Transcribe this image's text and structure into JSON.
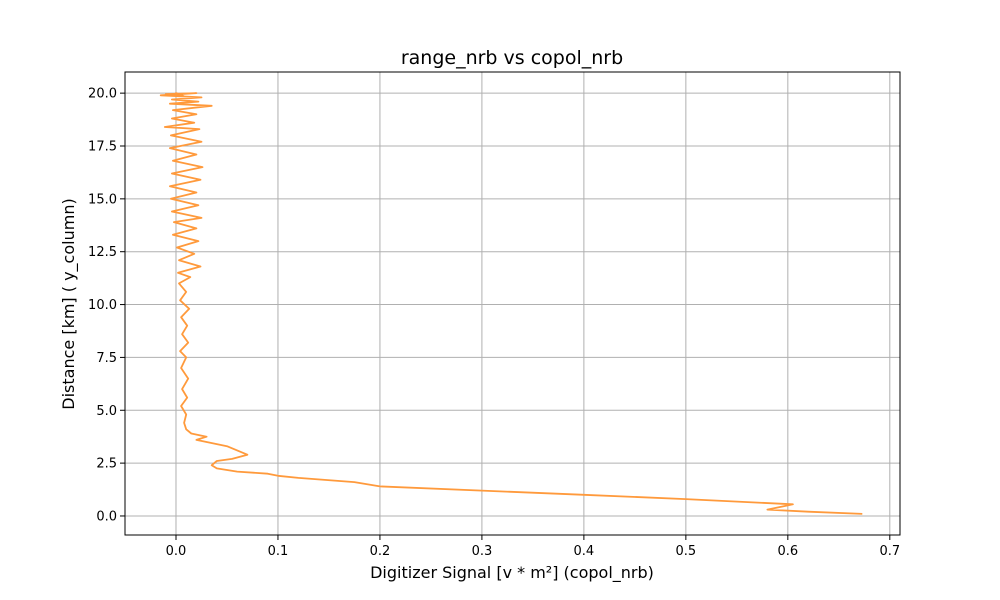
{
  "chart_data": {
    "type": "line",
    "title": "range_nrb vs copol_nrb",
    "xlabel": "Digitizer Signal [v * m²] (copol_nrb)",
    "ylabel": "Distance [km] ( y_column)",
    "xlim": [
      -0.05,
      0.71
    ],
    "ylim": [
      -0.9,
      21.0
    ],
    "xticks": [
      0.0,
      0.1,
      0.2,
      0.3,
      0.4,
      0.5,
      0.6,
      0.7
    ],
    "xtick_labels": [
      "0.0",
      "0.1",
      "0.2",
      "0.3",
      "0.4",
      "0.5",
      "0.6",
      "0.7"
    ],
    "yticks": [
      0.0,
      2.5,
      5.0,
      7.5,
      10.0,
      12.5,
      15.0,
      17.5,
      20.0
    ],
    "ytick_labels": [
      "0.0",
      "2.5",
      "5.0",
      "7.5",
      "10.0",
      "12.5",
      "15.0",
      "17.5",
      "20.0"
    ],
    "grid": true,
    "series": [
      {
        "color": "#ff9a3c",
        "x": [
          0.673,
          0.62,
          0.58,
          0.6,
          0.605,
          0.5,
          0.4,
          0.3,
          0.2,
          0.175,
          0.12,
          0.1,
          0.09,
          0.06,
          0.04,
          0.035,
          0.04,
          0.055,
          0.07,
          0.06,
          0.05,
          0.03,
          0.02,
          0.03,
          0.015,
          0.01,
          0.008,
          0.01,
          0.005,
          0.011,
          0.006,
          0.012,
          0.005,
          0.01,
          0.004,
          0.012,
          0.006,
          0.011,
          0.005,
          0.013,
          0.004,
          0.01,
          0.003,
          0.014,
          0.002,
          0.024,
          0.003,
          0.018,
          0.001,
          0.022,
          -0.003,
          0.02,
          -0.002,
          0.025,
          -0.004,
          0.022,
          -0.005,
          0.02,
          -0.006,
          0.024,
          -0.004,
          0.026,
          -0.003,
          0.02,
          -0.006,
          0.025,
          -0.005,
          0.023,
          -0.011,
          0.018,
          -0.004,
          0.02,
          -0.003,
          0.035,
          -0.006,
          0.022,
          -0.004,
          0.025,
          -0.015,
          0.02,
          -0.01,
          0.005,
          0.0,
          0.008
        ],
        "y": [
          0.1,
          0.2,
          0.3,
          0.5,
          0.55,
          0.8,
          1.0,
          1.2,
          1.4,
          1.6,
          1.8,
          1.9,
          2.0,
          2.1,
          2.25,
          2.4,
          2.6,
          2.7,
          2.9,
          3.1,
          3.3,
          3.5,
          3.6,
          3.75,
          3.9,
          4.1,
          4.4,
          4.8,
          5.2,
          5.6,
          6.0,
          6.5,
          7.0,
          7.5,
          7.8,
          8.2,
          8.6,
          9.0,
          9.4,
          9.8,
          10.2,
          10.6,
          11.0,
          11.3,
          11.5,
          11.8,
          12.1,
          12.4,
          12.7,
          13.0,
          13.3,
          13.6,
          13.9,
          14.1,
          14.4,
          14.7,
          15.0,
          15.3,
          15.6,
          15.9,
          16.2,
          16.5,
          16.8,
          17.1,
          17.4,
          17.7,
          18.0,
          18.3,
          18.4,
          18.6,
          18.8,
          19.0,
          19.2,
          19.4,
          19.5,
          19.6,
          19.7,
          19.8,
          19.9,
          20.0,
          19.95,
          19.9,
          20.0,
          19.85
        ]
      }
    ]
  }
}
